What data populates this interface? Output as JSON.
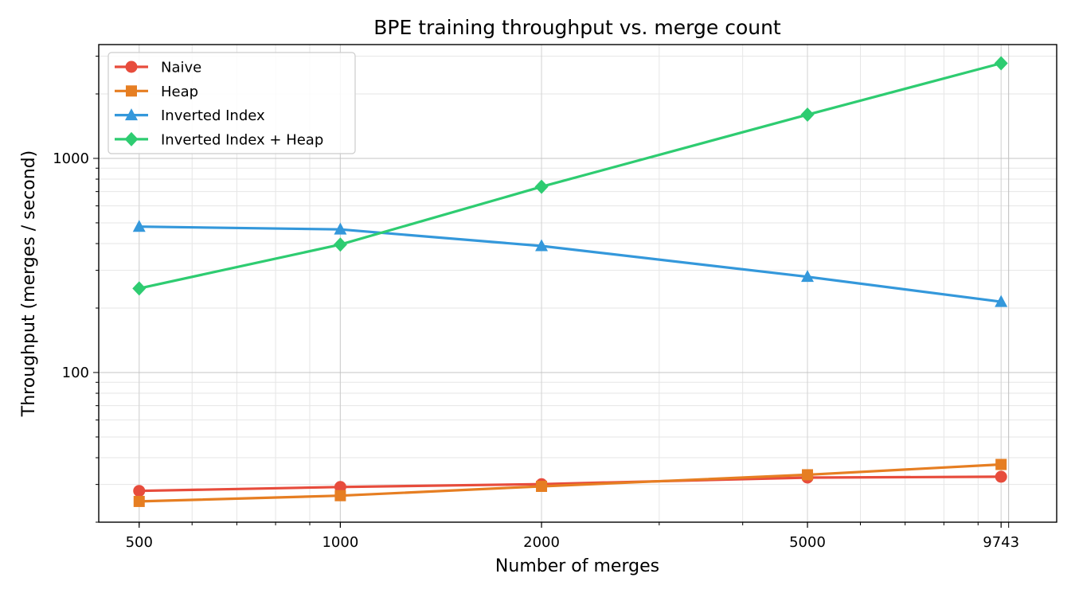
{
  "chart_data": {
    "type": "line",
    "title": "BPE training throughput vs. merge count",
    "xlabel": "Number of merges",
    "ylabel": "Throughput (merges / second)",
    "x_scale": "log",
    "y_scale": "log",
    "x": [
      500,
      1000,
      2000,
      5000,
      9743
    ],
    "xlim": [
      435,
      11800
    ],
    "ylim": [
      20,
      3400
    ],
    "x_ticks": [
      "500",
      "1000",
      "2000",
      "5000",
      "9743"
    ],
    "y_ticks": [
      "100",
      "1000"
    ],
    "grid": true,
    "legend_position": "top-left",
    "series": [
      {
        "name": "Naive",
        "marker": "circle",
        "color": "#e74c3c",
        "values": [
          28,
          29.2,
          30.1,
          32.3,
          32.6
        ]
      },
      {
        "name": "Heap",
        "marker": "square",
        "color": "#e67e22",
        "values": [
          25,
          26.6,
          29.4,
          33.3,
          37.2
        ]
      },
      {
        "name": "Inverted Index",
        "marker": "triangle",
        "color": "#3498db",
        "values": [
          480,
          466,
          390,
          280,
          214
        ]
      },
      {
        "name": "Inverted Index + Heap",
        "marker": "diamond",
        "color": "#2ecc71",
        "values": [
          247,
          396,
          737,
          1600,
          2780
        ]
      }
    ]
  }
}
